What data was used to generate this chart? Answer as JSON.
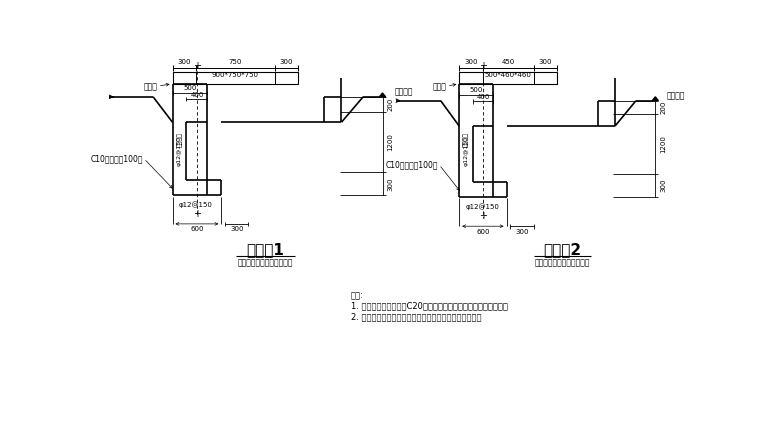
{
  "bg_color": "#ffffff",
  "line_color": "#000000",
  "title1": "集水井1",
  "subtitle1": "（平面位置按水电图布置）",
  "title2": "集水井2",
  "subtitle2": "（平面位置按水电图布置）",
  "c10_label": "C10素砼垫层100厚",
  "biaogao": "相应标高",
  "gaidiban": "闸底板",
  "cover1": "900*750*750",
  "cover2": "500*460*460",
  "rebar": "φ12@150",
  "double_row": "双排布置",
  "notes_title": "说明:",
  "note1": "1. 挡土墙身及基础采用C20混凝土，墙身及基础尺寸以结构为准。",
  "note2": "2. 本工程图纸未详之处均按国家现行施工验收规范执行。"
}
